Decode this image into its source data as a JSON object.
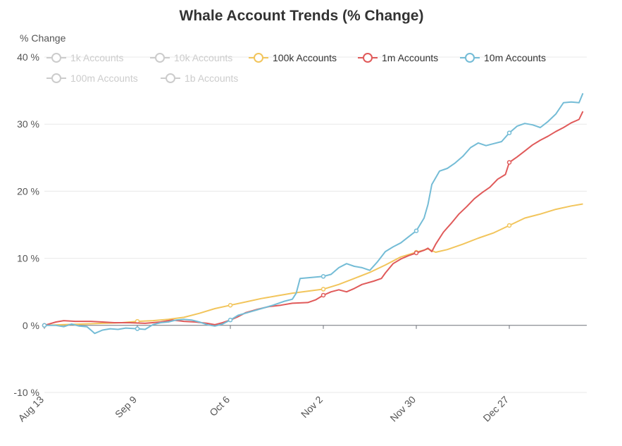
{
  "chart_data": {
    "type": "line",
    "title": "Whale Account Trends (% Change)",
    "ylabel": "% Change",
    "xlabel": "",
    "ylim": [
      -10,
      40
    ],
    "ytick_values": [
      -10,
      0,
      10,
      20,
      30,
      40
    ],
    "ytick_labels": [
      "-10 %",
      "0 %",
      "10 %",
      "20 %",
      "30 %",
      "40 %"
    ],
    "x_range": [
      0,
      140
    ],
    "xtick_positions": [
      0,
      24,
      48,
      72,
      96,
      120
    ],
    "xtick_labels": [
      "Aug 13",
      "Sep 9",
      "Oct 6",
      "Nov 2",
      "Nov 30",
      "Dec 27"
    ],
    "colors": {
      "inactive": "#cccccc",
      "100k Accounts": "#f2c55c",
      "1m Accounts": "#e05a5a",
      "10m Accounts": "#74bcd6",
      "grid": "#e8e8e8",
      "axis": "#6e7079"
    },
    "legend": [
      {
        "name": "1k Accounts",
        "active": false
      },
      {
        "name": "10k Accounts",
        "active": false
      },
      {
        "name": "100k Accounts",
        "active": true
      },
      {
        "name": "1m Accounts",
        "active": true
      },
      {
        "name": "10m Accounts",
        "active": true
      },
      {
        "name": "100m Accounts",
        "active": false
      },
      {
        "name": "1b Accounts",
        "active": false
      }
    ],
    "series": [
      {
        "name": "100k Accounts",
        "points": [
          [
            0,
            0
          ],
          [
            5,
            0.1
          ],
          [
            10,
            0.2
          ],
          [
            15,
            0.3
          ],
          [
            20,
            0.4
          ],
          [
            24,
            0.6
          ],
          [
            28,
            0.7
          ],
          [
            32,
            0.9
          ],
          [
            36,
            1.2
          ],
          [
            40,
            1.8
          ],
          [
            44,
            2.5
          ],
          [
            48,
            3.0
          ],
          [
            52,
            3.5
          ],
          [
            56,
            4.0
          ],
          [
            60,
            4.4
          ],
          [
            64,
            4.8
          ],
          [
            68,
            5.1
          ],
          [
            72,
            5.4
          ],
          [
            76,
            6.1
          ],
          [
            80,
            7.0
          ],
          [
            84,
            7.9
          ],
          [
            88,
            9.0
          ],
          [
            92,
            10.2
          ],
          [
            96,
            10.9
          ],
          [
            99,
            11.4
          ],
          [
            101,
            10.9
          ],
          [
            104,
            11.3
          ],
          [
            108,
            12.1
          ],
          [
            112,
            13.0
          ],
          [
            116,
            13.8
          ],
          [
            120,
            14.9
          ],
          [
            124,
            16.0
          ],
          [
            128,
            16.6
          ],
          [
            132,
            17.3
          ],
          [
            136,
            17.8
          ],
          [
            139,
            18.1
          ]
        ],
        "markers": [
          0,
          24,
          48,
          72,
          96,
          120
        ]
      },
      {
        "name": "1m Accounts",
        "points": [
          [
            0,
            0
          ],
          [
            3,
            0.5
          ],
          [
            5,
            0.7
          ],
          [
            8,
            0.6
          ],
          [
            12,
            0.6
          ],
          [
            15,
            0.5
          ],
          [
            18,
            0.4
          ],
          [
            22,
            0.4
          ],
          [
            26,
            0.3
          ],
          [
            30,
            0.5
          ],
          [
            33,
            0.8
          ],
          [
            36,
            0.6
          ],
          [
            39,
            0.5
          ],
          [
            42,
            0.3
          ],
          [
            44,
            0.1
          ],
          [
            46,
            0.4
          ],
          [
            48,
            0.8
          ],
          [
            50,
            1.3
          ],
          [
            52,
            1.9
          ],
          [
            55,
            2.4
          ],
          [
            58,
            2.8
          ],
          [
            61,
            3.0
          ],
          [
            64,
            3.3
          ],
          [
            68,
            3.4
          ],
          [
            70,
            3.8
          ],
          [
            72,
            4.5
          ],
          [
            74,
            5.0
          ],
          [
            76,
            5.3
          ],
          [
            78,
            5.0
          ],
          [
            80,
            5.5
          ],
          [
            82,
            6.1
          ],
          [
            85,
            6.6
          ],
          [
            87,
            7.0
          ],
          [
            88,
            7.8
          ],
          [
            90,
            9.2
          ],
          [
            92,
            9.9
          ],
          [
            94,
            10.4
          ],
          [
            96,
            10.8
          ],
          [
            98,
            11.2
          ],
          [
            99,
            11.5
          ],
          [
            100,
            11.0
          ],
          [
            101,
            12.1
          ],
          [
            103,
            13.9
          ],
          [
            105,
            15.2
          ],
          [
            107,
            16.6
          ],
          [
            109,
            17.7
          ],
          [
            111,
            18.9
          ],
          [
            113,
            19.8
          ],
          [
            115,
            20.6
          ],
          [
            117,
            21.8
          ],
          [
            119,
            22.5
          ],
          [
            120,
            24.3
          ],
          [
            122,
            25.1
          ],
          [
            124,
            26.0
          ],
          [
            126,
            26.9
          ],
          [
            128,
            27.6
          ],
          [
            130,
            28.2
          ],
          [
            132,
            28.9
          ],
          [
            134,
            29.5
          ],
          [
            136,
            30.2
          ],
          [
            138,
            30.7
          ],
          [
            139,
            31.9
          ]
        ],
        "markers": [
          0,
          72,
          96,
          120
        ]
      },
      {
        "name": "10m Accounts",
        "points": [
          [
            0,
            0
          ],
          [
            3,
            0
          ],
          [
            5,
            -0.2
          ],
          [
            7,
            0.2
          ],
          [
            9,
            -0.1
          ],
          [
            11,
            -0.2
          ],
          [
            13,
            -1.2
          ],
          [
            15,
            -0.7
          ],
          [
            17,
            -0.5
          ],
          [
            19,
            -0.6
          ],
          [
            21,
            -0.4
          ],
          [
            24,
            -0.5
          ],
          [
            26,
            -0.6
          ],
          [
            28,
            0.1
          ],
          [
            30,
            0.4
          ],
          [
            32,
            0.5
          ],
          [
            34,
            0.8
          ],
          [
            36,
            0.9
          ],
          [
            38,
            0.8
          ],
          [
            40,
            0.5
          ],
          [
            42,
            0.1
          ],
          [
            44,
            -0.1
          ],
          [
            46,
            0.2
          ],
          [
            48,
            0.8
          ],
          [
            50,
            1.5
          ],
          [
            53,
            2.0
          ],
          [
            56,
            2.5
          ],
          [
            59,
            3.0
          ],
          [
            62,
            3.6
          ],
          [
            64,
            3.9
          ],
          [
            65,
            4.8
          ],
          [
            66,
            7.0
          ],
          [
            68,
            7.1
          ],
          [
            70,
            7.2
          ],
          [
            72,
            7.3
          ],
          [
            74,
            7.6
          ],
          [
            76,
            8.6
          ],
          [
            78,
            9.2
          ],
          [
            80,
            8.8
          ],
          [
            82,
            8.6
          ],
          [
            84,
            8.2
          ],
          [
            86,
            9.5
          ],
          [
            88,
            11.0
          ],
          [
            90,
            11.7
          ],
          [
            92,
            12.3
          ],
          [
            94,
            13.2
          ],
          [
            96,
            14.1
          ],
          [
            98,
            16.0
          ],
          [
            99,
            18.0
          ],
          [
            100,
            21.0
          ],
          [
            102,
            23.0
          ],
          [
            104,
            23.4
          ],
          [
            106,
            24.2
          ],
          [
            108,
            25.2
          ],
          [
            110,
            26.5
          ],
          [
            112,
            27.2
          ],
          [
            114,
            26.8
          ],
          [
            116,
            27.1
          ],
          [
            118,
            27.4
          ],
          [
            120,
            28.7
          ],
          [
            122,
            29.7
          ],
          [
            124,
            30.1
          ],
          [
            126,
            29.9
          ],
          [
            128,
            29.5
          ],
          [
            130,
            30.4
          ],
          [
            132,
            31.5
          ],
          [
            134,
            33.2
          ],
          [
            136,
            33.3
          ],
          [
            138,
            33.2
          ],
          [
            139,
            34.6
          ]
        ],
        "markers": [
          0,
          24,
          48,
          72,
          96,
          120
        ]
      }
    ]
  }
}
